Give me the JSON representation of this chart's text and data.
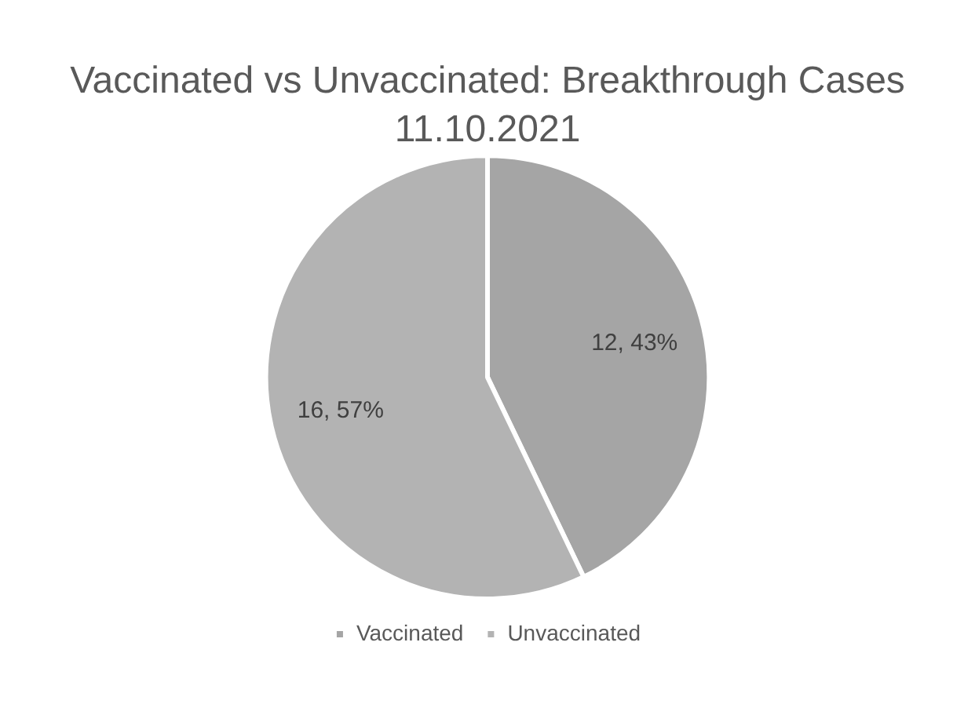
{
  "chart_data": {
    "type": "pie",
    "title": "Vaccinated vs Unvaccinated: Breakthrough Cases",
    "subtitle": "11.10.2021",
    "categories": [
      "Vaccinated",
      "Unvaccinated"
    ],
    "values": [
      12,
      16
    ],
    "value_labels": [
      "12, 43%",
      "16, 57%"
    ],
    "colors": [
      "#a5a5a5",
      "#b3b3b3"
    ],
    "legend": "bottom"
  }
}
